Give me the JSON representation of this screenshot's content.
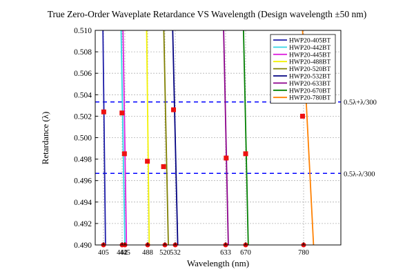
{
  "chart_data": {
    "type": "line",
    "title": "True Zero-Order Waveplate Retardance VS Wavelength (Design wavelength ±50 nm)",
    "xlabel": "Wavelength (nm)",
    "ylabel": "Retardance (λ)",
    "ylim": [
      0.49,
      0.51
    ],
    "yticks": [
      "0.490",
      "0.492",
      "0.494",
      "0.496",
      "0.498",
      "0.500",
      "0.502",
      "0.504",
      "0.506",
      "0.508",
      "0.510"
    ],
    "xticks": [
      405,
      442,
      445,
      488,
      520,
      532,
      633,
      670,
      780
    ],
    "grid": true,
    "legend_position": "top-right",
    "series": [
      {
        "name": "HWP20-405BT",
        "color": "#1a1aa6",
        "x": [
          404,
          409
        ],
        "y": [
          0.51,
          0.49
        ]
      },
      {
        "name": "HWP20-442BT",
        "color": "#33d6e6",
        "x": [
          440,
          445
        ],
        "y": [
          0.51,
          0.49
        ]
      },
      {
        "name": "HWP20-445BT",
        "color": "#dd22dd",
        "x": [
          443,
          448
        ],
        "y": [
          0.51,
          0.49
        ]
      },
      {
        "name": "HWP20-488BT",
        "color": "#f2f200",
        "x": [
          486,
          491
        ],
        "y": [
          0.51,
          0.49
        ]
      },
      {
        "name": "HWP20-520BT",
        "color": "#808000",
        "x": [
          518,
          524
        ],
        "y": [
          0.51,
          0.49
        ]
      },
      {
        "name": "HWP20-532BT",
        "color": "#000080",
        "x": [
          529,
          537
        ],
        "y": [
          0.51,
          0.49
        ]
      },
      {
        "name": "HWP20-633BT",
        "color": "#8b008b",
        "x": [
          629,
          638
        ],
        "y": [
          0.51,
          0.49
        ]
      },
      {
        "name": "HWP20-670BT",
        "color": "#008000",
        "x": [
          666,
          675
        ],
        "y": [
          0.51,
          0.49
        ]
      },
      {
        "name": "HWP20-780BT",
        "color": "#ff8000",
        "x": [
          778,
          788
        ],
        "y": [
          0.51,
          0.49
        ]
      }
    ],
    "reference_lines": [
      {
        "label": "0.5λ+λ/300",
        "y": 0.50333,
        "color": "#0000ff"
      },
      {
        "label": "0.5λ-λ/300",
        "y": 0.49667,
        "color": "#0000ff"
      }
    ],
    "markers": {
      "color": "#ee1111",
      "squares": [
        {
          "x": 405.5,
          "y": 0.5024
        },
        {
          "x": 441.7,
          "y": 0.5023
        },
        {
          "x": 444.5,
          "y": 0.4985
        },
        {
          "x": 487.5,
          "y": 0.4978
        },
        {
          "x": 517.5,
          "y": 0.4973
        },
        {
          "x": 530,
          "y": 0.5026
        },
        {
          "x": 634,
          "y": 0.4981
        },
        {
          "x": 670,
          "y": 0.4985
        },
        {
          "x": 778,
          "y": 0.502
        }
      ],
      "dots_at_axis": [
        405,
        442,
        445,
        488,
        520,
        532,
        633,
        670,
        780
      ]
    }
  }
}
